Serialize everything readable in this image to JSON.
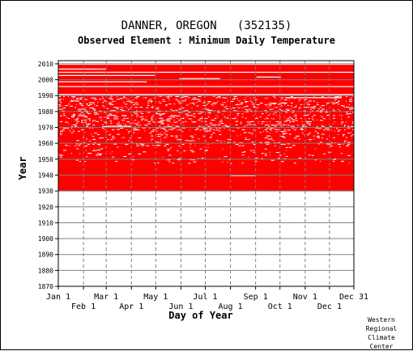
{
  "chart_data": {
    "type": "heatmap",
    "title": "DANNER, OREGON   (352135)",
    "subtitle": "Observed Element : Minimum Daily Temperature",
    "xlabel": "Day of Year",
    "ylabel": "Year",
    "xlim": [
      1,
      365
    ],
    "ylim": [
      1870,
      2012
    ],
    "x_ticks_upper": [
      "Jan 1",
      "Mar 1",
      "May 1",
      "Jul 1",
      "Sep 1",
      "Nov 1",
      "Dec 31"
    ],
    "x_ticks_lower": [
      "Feb 1",
      "Apr 1",
      "Jun 1",
      "Aug 1",
      "Oct 1",
      "Dec 1"
    ],
    "y_ticks": [
      "2010",
      "2000",
      "1990",
      "1980",
      "1970",
      "1960",
      "1950",
      "1940",
      "1930",
      "1920",
      "1910",
      "1900",
      "1890",
      "1880",
      "1870"
    ],
    "data_color": "#ff0000",
    "missing_color": "#ffffff",
    "grid": true,
    "period_of_record": [
      1930,
      2009
    ],
    "missing_full_years": [
      1990
    ],
    "missing_spans": [
      {
        "year": 2009,
        "start_day": 1,
        "end_day": 365
      },
      {
        "year": 2006,
        "start_day": 1,
        "end_day": 60
      },
      {
        "year": 2004,
        "start_day": 1,
        "end_day": 365
      },
      {
        "year": 2002,
        "start_day": 1,
        "end_day": 120
      },
      {
        "year": 2001,
        "start_day": 245,
        "end_day": 275
      },
      {
        "year": 2000,
        "start_day": 150,
        "end_day": 200
      },
      {
        "year": 1998,
        "start_day": 1,
        "end_day": 110
      },
      {
        "year": 1995,
        "start_day": 1,
        "end_day": 365
      },
      {
        "year": 1988,
        "start_day": 280,
        "end_day": 350
      },
      {
        "year": 1970,
        "start_day": 60,
        "end_day": 90
      },
      {
        "year": 1939,
        "start_day": 213,
        "end_day": 243
      }
    ]
  },
  "credit": [
    "Western",
    "Regional",
    "Climate",
    "Center"
  ]
}
